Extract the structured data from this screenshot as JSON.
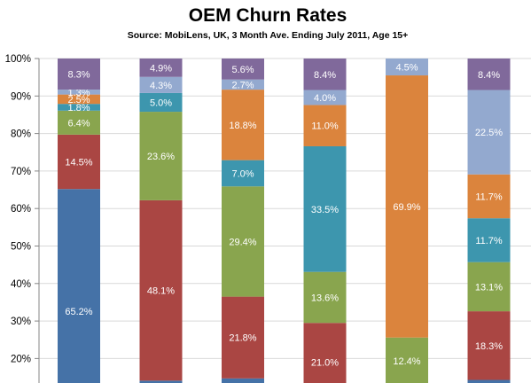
{
  "colors": {
    "blue": "#4572A7",
    "red": "#AA4643",
    "green": "#89A54E",
    "teal": "#3D96AE",
    "orange": "#DB843D",
    "lightblue": "#93A9CF",
    "purple": "#80699B"
  },
  "chart_data": {
    "type": "bar",
    "stacked": true,
    "title": "OEM Churn Rates",
    "subtitle": "Source: MobiLens, UK, 3 Month Ave. Ending July 2011, Age 15+",
    "xlabel": "",
    "ylabel": "",
    "ylim": [
      0.15,
      1.0
    ],
    "yticks": [
      "20%",
      "30%",
      "40%",
      "50%",
      "60%",
      "70%",
      "80%",
      "90%",
      "100%"
    ],
    "grid": true,
    "legend": "none",
    "stacks": [
      {
        "segments": [
          {
            "value": 65.2,
            "label": "65.2%",
            "color": "blue"
          },
          {
            "value": 14.5,
            "label": "14.5%",
            "color": "red"
          },
          {
            "value": 6.4,
            "label": "6.4%",
            "color": "green"
          },
          {
            "value": 1.8,
            "label": "1.8%",
            "color": "teal"
          },
          {
            "value": 2.5,
            "label": "2.5%",
            "color": "orange"
          },
          {
            "value": 1.3,
            "label": "1.3%",
            "color": "lightblue"
          },
          {
            "value": 8.3,
            "label": "8.3%",
            "color": "purple"
          }
        ]
      },
      {
        "segments": [
          {
            "value": 14.1,
            "label": "",
            "color": "blue"
          },
          {
            "value": 48.1,
            "label": "48.1%",
            "color": "red"
          },
          {
            "value": 23.6,
            "label": "23.6%",
            "color": "green"
          },
          {
            "value": 5.0,
            "label": "5.0%",
            "color": "teal"
          },
          {
            "value": 0.0,
            "label": "",
            "color": "orange"
          },
          {
            "value": 4.3,
            "label": "4.3%",
            "color": "lightblue"
          },
          {
            "value": 4.9,
            "label": "4.9%",
            "color": "purple"
          }
        ]
      },
      {
        "segments": [
          {
            "value": 14.7,
            "label": "",
            "color": "blue"
          },
          {
            "value": 21.8,
            "label": "21.8%",
            "color": "red"
          },
          {
            "value": 29.4,
            "label": "29.4%",
            "color": "green"
          },
          {
            "value": 7.0,
            "label": "7.0%",
            "color": "teal"
          },
          {
            "value": 18.8,
            "label": "18.8%",
            "color": "orange"
          },
          {
            "value": 2.7,
            "label": "2.7%",
            "color": "lightblue"
          },
          {
            "value": 5.6,
            "label": "5.6%",
            "color": "purple"
          }
        ]
      },
      {
        "segments": [
          {
            "value": 8.5,
            "label": "",
            "color": "blue"
          },
          {
            "value": 21.0,
            "label": "21.0%",
            "color": "red"
          },
          {
            "value": 13.6,
            "label": "13.6%",
            "color": "green"
          },
          {
            "value": 33.5,
            "label": "33.5%",
            "color": "teal"
          },
          {
            "value": 11.0,
            "label": "11.0%",
            "color": "orange"
          },
          {
            "value": 4.0,
            "label": "4.0%",
            "color": "lightblue"
          },
          {
            "value": 8.4,
            "label": "8.4%",
            "color": "purple"
          }
        ]
      },
      {
        "segments": [
          {
            "value": 13.2,
            "label": "",
            "color": "blue"
          },
          {
            "value": 0.0,
            "label": "",
            "color": "red"
          },
          {
            "value": 12.4,
            "label": "12.4%",
            "color": "green"
          },
          {
            "value": 0.0,
            "label": "",
            "color": "teal"
          },
          {
            "value": 69.9,
            "label": "69.9%",
            "color": "orange"
          },
          {
            "value": 4.5,
            "label": "4.5%",
            "color": "lightblue"
          },
          {
            "value": 0.0,
            "label": "",
            "color": "purple"
          }
        ]
      },
      {
        "segments": [
          {
            "value": 14.3,
            "label": "",
            "color": "blue"
          },
          {
            "value": 18.3,
            "label": "18.3%",
            "color": "red"
          },
          {
            "value": 13.1,
            "label": "13.1%",
            "color": "green"
          },
          {
            "value": 11.7,
            "label": "11.7%",
            "color": "teal"
          },
          {
            "value": 11.7,
            "label": "11.7%",
            "color": "orange"
          },
          {
            "value": 22.5,
            "label": "22.5%",
            "color": "lightblue"
          },
          {
            "value": 8.4,
            "label": "8.4%",
            "color": "purple"
          }
        ]
      }
    ]
  }
}
